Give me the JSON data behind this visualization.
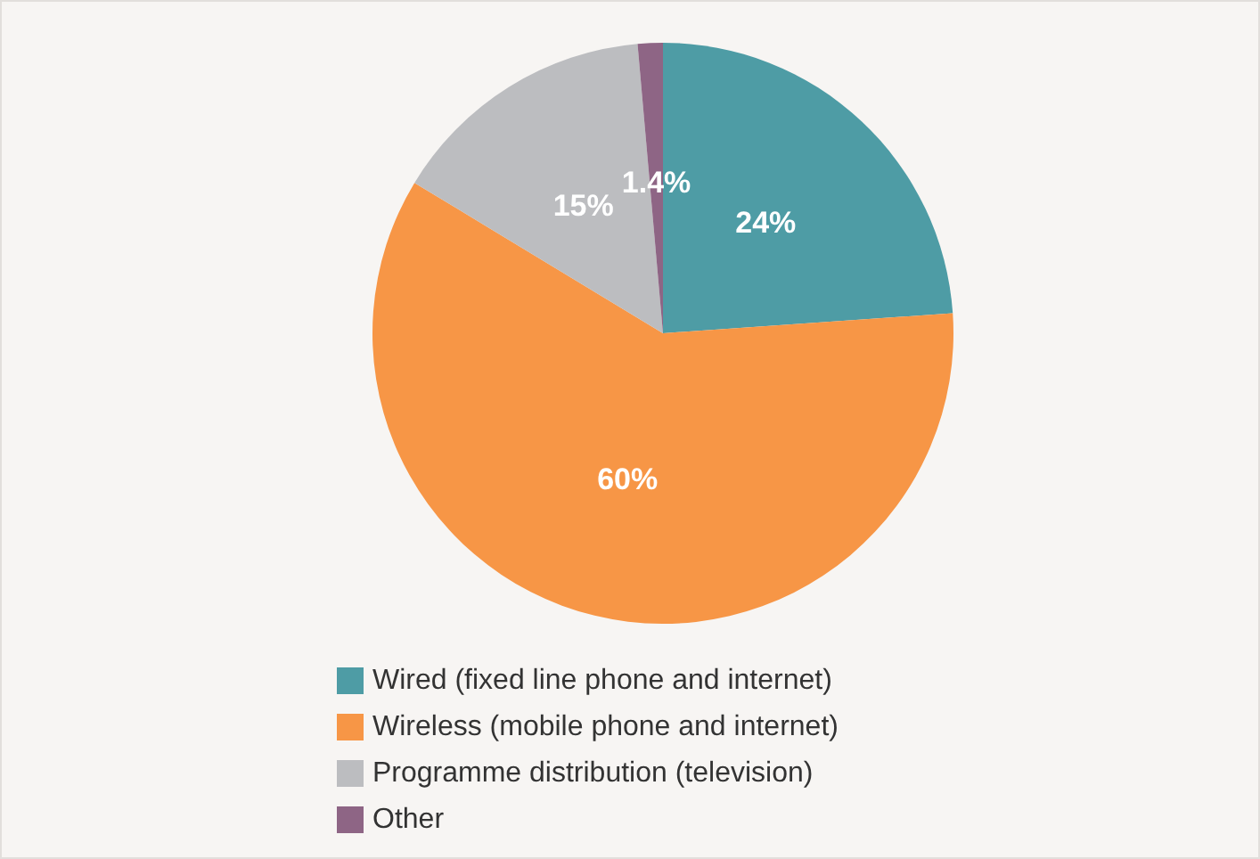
{
  "chart_data": {
    "type": "pie",
    "categories": [
      "Wired (fixed line phone and internet)",
      "Wireless (mobile phone and internet)",
      "Programme distribution (television)",
      "Other"
    ],
    "values": [
      24,
      60,
      15,
      1.4
    ],
    "colors": [
      "#4e9ca5",
      "#f79646",
      "#bcbdc0",
      "#8e6585"
    ],
    "value_labels": [
      "24%",
      "60%",
      "15%",
      "1.4%"
    ],
    "legend": "bottom"
  }
}
